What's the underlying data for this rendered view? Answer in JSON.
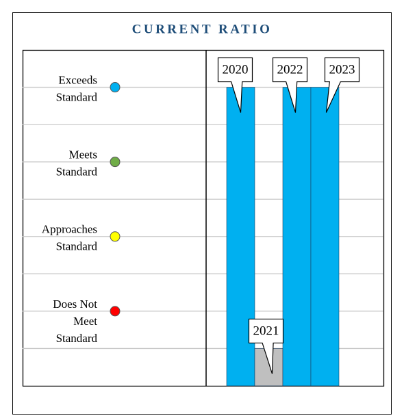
{
  "chart_data": {
    "type": "bar",
    "title": "CURRENT RATIO",
    "categories": [
      "2020",
      "2021",
      "2022",
      "2023"
    ],
    "values": [
      8,
      1,
      8,
      8
    ],
    "colors": [
      "#00b0f0",
      "#bfbfbf",
      "#00b0f0",
      "#00b0f0"
    ],
    "ylim": [
      0,
      9
    ],
    "yticks": [
      1,
      2,
      3,
      4,
      5,
      6,
      7,
      8
    ],
    "grid": true,
    "levels": [
      {
        "value": 8,
        "lines": [
          "Exceeds",
          "Standard"
        ],
        "color": "#00b0f0"
      },
      {
        "value": 6,
        "lines": [
          "Meets",
          "Standard"
        ],
        "color": "#70ad47"
      },
      {
        "value": 4,
        "lines": [
          "Approaches",
          "Standard"
        ],
        "color": "#ffff00"
      },
      {
        "value": 2,
        "lines": [
          "Does Not",
          "Meet",
          "Standard"
        ],
        "color": "#ff0000"
      }
    ]
  }
}
